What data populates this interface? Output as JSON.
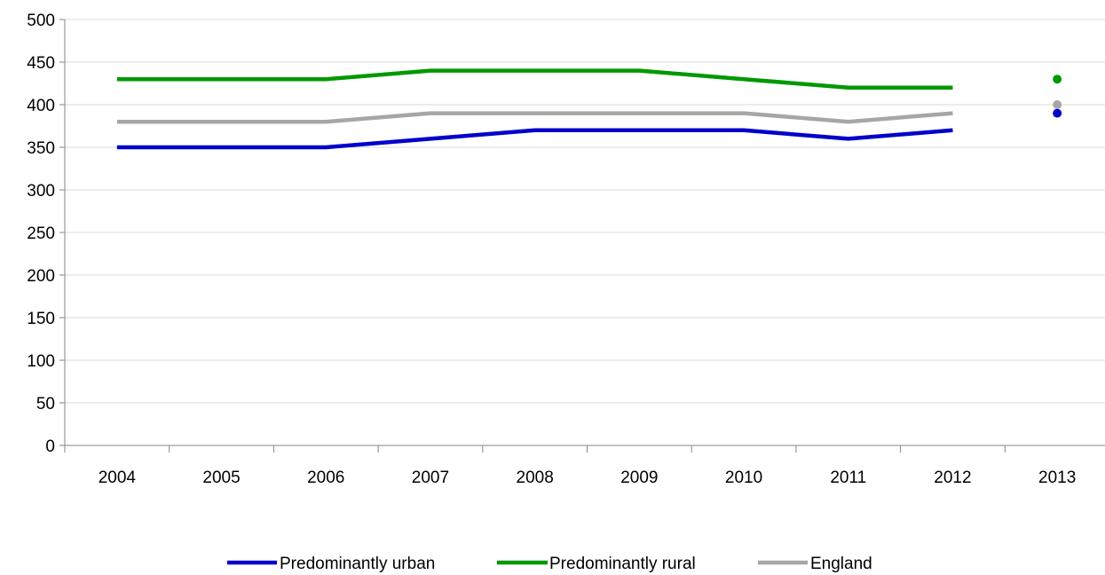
{
  "chart_data": {
    "type": "line",
    "title": "",
    "xlabel": "",
    "ylabel": "",
    "categories": [
      "2004",
      "2005",
      "2006",
      "2007",
      "2008",
      "2009",
      "2010",
      "2011",
      "2012",
      "2013"
    ],
    "ylim": [
      0,
      500
    ],
    "yticks": [
      "0",
      "50",
      "100",
      "150",
      "200",
      "250",
      "300",
      "350",
      "400",
      "450",
      "500"
    ],
    "grid": true,
    "legend_position": "bottom",
    "series": [
      {
        "name": "Predominantly urban",
        "color": "#0000CC",
        "values": [
          350,
          350,
          350,
          360,
          370,
          370,
          370,
          360,
          370,
          390
        ]
      },
      {
        "name": "Predominantly rural",
        "color": "#009900",
        "values": [
          430,
          430,
          430,
          440,
          440,
          440,
          430,
          420,
          420,
          430
        ]
      },
      {
        "name": "England",
        "color": "#A6A6A6",
        "values": [
          380,
          380,
          380,
          390,
          390,
          390,
          390,
          380,
          390,
          400
        ]
      }
    ],
    "note": "Line covers 2004-2012; 2013 shown as separate point"
  }
}
